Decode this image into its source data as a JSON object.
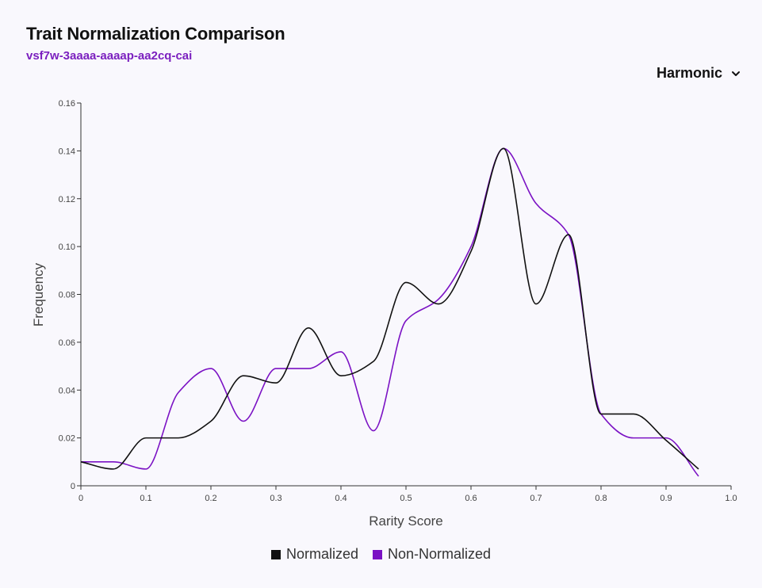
{
  "header": {
    "title": "Trait Normalization Comparison",
    "subtitle": "vsf7w-3aaaa-aaaap-aa2cq-cai",
    "dropdown_value": "Harmonic",
    "dropdown_icon": "chevron-down-icon"
  },
  "colors": {
    "normalized": "#111111",
    "non_normalized": "#7b12c4",
    "axis": "#333333",
    "subtitle": "#7b1fbf"
  },
  "chart_data": {
    "type": "line",
    "title": "Trait Normalization Comparison",
    "xlabel": "Rarity Score",
    "ylabel": "Frequency",
    "xlim": [
      0,
      1.0
    ],
    "ylim": [
      0,
      0.16
    ],
    "xticks": [
      "0",
      "0.1",
      "0.2",
      "0.3",
      "0.4",
      "0.5",
      "0.6",
      "0.7",
      "0.8",
      "0.9",
      "1.0"
    ],
    "yticks": [
      "0",
      "0.02",
      "0.04",
      "0.06",
      "0.08",
      "0.10",
      "0.12",
      "0.14",
      "0.16"
    ],
    "grid": false,
    "legend": "bottom-center",
    "x": [
      0,
      0.05,
      0.1,
      0.15,
      0.2,
      0.25,
      0.3,
      0.35,
      0.4,
      0.45,
      0.5,
      0.55,
      0.6,
      0.65,
      0.7,
      0.75,
      0.8,
      0.85,
      0.9,
      0.95
    ],
    "series": [
      {
        "name": "Normalized",
        "values": [
          0.01,
          0.007,
          0.02,
          0.02,
          0.027,
          0.046,
          0.043,
          0.066,
          0.046,
          0.052,
          0.085,
          0.076,
          0.098,
          0.141,
          0.076,
          0.105,
          0.03,
          0.03,
          0.019,
          0.007
        ]
      },
      {
        "name": "Non-Normalized",
        "values": [
          0.01,
          0.01,
          0.007,
          0.039,
          0.049,
          0.027,
          0.049,
          0.049,
          0.056,
          0.023,
          0.069,
          0.078,
          0.1,
          0.141,
          0.118,
          0.105,
          0.03,
          0.02,
          0.02,
          0.004
        ]
      }
    ]
  }
}
